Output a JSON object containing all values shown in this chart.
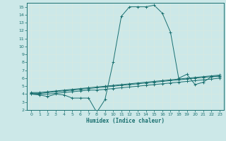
{
  "xlabel": "Humidex (Indice chaleur)",
  "xlim": [
    -0.5,
    23.5
  ],
  "ylim": [
    2,
    15.5
  ],
  "yticks": [
    2,
    3,
    4,
    5,
    6,
    7,
    8,
    9,
    10,
    11,
    12,
    13,
    14,
    15
  ],
  "xticks": [
    0,
    1,
    2,
    3,
    4,
    5,
    6,
    7,
    8,
    9,
    10,
    11,
    12,
    13,
    14,
    15,
    16,
    17,
    18,
    19,
    20,
    21,
    22,
    23
  ],
  "bg_color": "#cce8e8",
  "grid_color": "#b0d8d8",
  "line_color": "#1a7070",
  "lines": [
    {
      "x": [
        0,
        1,
        2,
        3,
        4,
        5,
        6,
        7,
        8,
        9,
        10,
        11,
        12,
        13,
        14,
        15,
        16,
        17,
        18,
        19,
        20,
        21,
        22,
        23
      ],
      "y": [
        4.0,
        3.9,
        3.7,
        4.0,
        3.9,
        3.5,
        3.5,
        3.5,
        1.7,
        3.3,
        8.0,
        13.8,
        15.0,
        15.0,
        15.0,
        15.2,
        14.2,
        11.8,
        6.0,
        6.5,
        5.2,
        5.5,
        6.2,
        6.2
      ]
    },
    {
      "x": [
        0,
        1,
        2,
        3,
        4,
        5,
        6,
        7,
        8,
        9,
        10,
        11,
        12,
        13,
        14,
        15,
        16,
        17,
        18,
        19,
        20,
        21,
        22,
        23
      ],
      "y": [
        4.0,
        4.0,
        4.0,
        4.1,
        4.2,
        4.3,
        4.4,
        4.5,
        4.5,
        4.6,
        4.7,
        4.8,
        4.9,
        5.0,
        5.1,
        5.2,
        5.3,
        5.4,
        5.5,
        5.6,
        5.7,
        5.8,
        5.9,
        6.0
      ]
    },
    {
      "x": [
        0,
        1,
        2,
        3,
        4,
        5,
        6,
        7,
        8,
        9,
        10,
        11,
        12,
        13,
        14,
        15,
        16,
        17,
        18,
        19,
        20,
        21,
        22,
        23
      ],
      "y": [
        4.1,
        4.1,
        4.2,
        4.3,
        4.4,
        4.5,
        4.6,
        4.7,
        4.8,
        4.9,
        5.0,
        5.1,
        5.2,
        5.3,
        5.4,
        5.5,
        5.6,
        5.7,
        5.8,
        5.9,
        6.0,
        6.1,
        6.2,
        6.3
      ]
    },
    {
      "x": [
        0,
        1,
        2,
        3,
        4,
        5,
        6,
        7,
        8,
        9,
        10,
        11,
        12,
        13,
        14,
        15,
        16,
        17,
        18,
        19,
        20,
        21,
        22,
        23
      ],
      "y": [
        4.2,
        4.2,
        4.3,
        4.4,
        4.5,
        4.6,
        4.7,
        4.8,
        4.9,
        5.0,
        5.1,
        5.2,
        5.3,
        5.4,
        5.5,
        5.6,
        5.7,
        5.8,
        5.9,
        6.0,
        6.1,
        6.2,
        6.3,
        6.4
      ]
    }
  ]
}
